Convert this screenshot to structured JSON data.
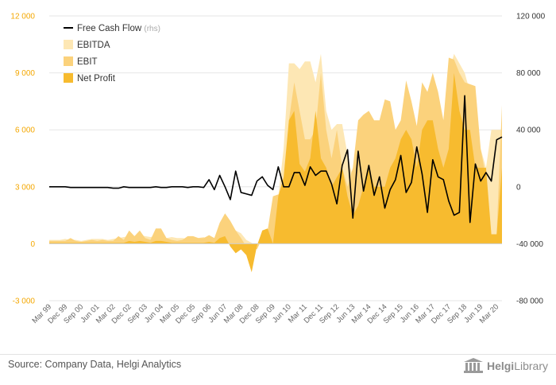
{
  "chart_data": {
    "type": "area",
    "title": "",
    "x": [
      "Mar 99",
      "Jun 99",
      "Sep 99",
      "Dec 99",
      "Mar 00",
      "Jun 00",
      "Sep 00",
      "Dec 00",
      "Mar 01",
      "Jun 01",
      "Sep 01",
      "Dec 01",
      "Mar 02",
      "Jun 02",
      "Sep 02",
      "Dec 02",
      "Mar 03",
      "Jun 03",
      "Sep 03",
      "Dec 03",
      "Mar 04",
      "Jun 04",
      "Sep 04",
      "Dec 04",
      "Mar 05",
      "Jun 05",
      "Sep 05",
      "Dec 05",
      "Mar 06",
      "Jun 06",
      "Sep 06",
      "Dec 06",
      "Mar 07",
      "Jun 07",
      "Sep 07",
      "Dec 07",
      "Mar 08",
      "Jun 08",
      "Sep 08",
      "Dec 08",
      "Mar 09",
      "Jun 09",
      "Sep 09",
      "Dec 09",
      "Mar 10",
      "Jun 10",
      "Sep 10",
      "Dec 10",
      "Mar 11",
      "Jun 11",
      "Sep 11",
      "Dec 11",
      "Mar 12",
      "Jun 12",
      "Sep 12",
      "Dec 12",
      "Mar 13",
      "Jun 13",
      "Sep 13",
      "Dec 13",
      "Mar 14",
      "Jun 14",
      "Sep 14",
      "Dec 14",
      "Mar 15",
      "Jun 15",
      "Sep 15",
      "Dec 15",
      "Mar 16",
      "Jun 16",
      "Sep 16",
      "Dec 16",
      "Mar 17",
      "Jun 17",
      "Sep 17",
      "Dec 17",
      "Mar 18",
      "Jun 18",
      "Sep 18",
      "Dec 18",
      "Mar 19",
      "Jun 19",
      "Sep 19",
      "Dec 19",
      "Mar 20",
      "Jun 20"
    ],
    "x_tick_labels": [
      "Mar 99",
      "Dec 99",
      "Sep 00",
      "Jun 01",
      "Mar 02",
      "Dec 02",
      "Sep 03",
      "Jun 04",
      "Mar 05",
      "Dec 05",
      "Sep 06",
      "Jun 07",
      "Mar 08",
      "Dec 08",
      "Sep 09",
      "Jun 10",
      "Mar 11",
      "Dec 11",
      "Sep 12",
      "Jun 13",
      "Mar 14",
      "Dec 14",
      "Sep 15",
      "Jun 16",
      "Mar 17",
      "Dec 17",
      "Sep 18",
      "Jun 19",
      "Mar 20"
    ],
    "y_left": {
      "lim": [
        -3000,
        12000
      ],
      "ticks": [
        -3000,
        0,
        3000,
        6000,
        9000,
        12000
      ],
      "tick_labels": [
        "-3 000",
        "0",
        "3 000",
        "6 000",
        "9 000",
        "12 000"
      ],
      "color": "#f4a700"
    },
    "y_right": {
      "lim": [
        -80000,
        120000
      ],
      "ticks": [
        -80000,
        -40000,
        0,
        40000,
        80000,
        120000
      ],
      "tick_labels": [
        "-80 000",
        "-40 000",
        "0",
        "40 000",
        "80 000",
        "120 000"
      ]
    },
    "series": [
      {
        "name": "EBITDA",
        "axis": "left",
        "kind": "area",
        "color": "#fde7b4",
        "values": [
          200,
          200,
          200,
          250,
          200,
          200,
          150,
          200,
          250,
          250,
          250,
          200,
          250,
          300,
          350,
          400,
          400,
          450,
          400,
          350,
          400,
          350,
          300,
          350,
          300,
          300,
          250,
          250,
          300,
          350,
          200,
          300,
          1000,
          900,
          700,
          700,
          550,
          200,
          50,
          -200,
          500,
          700,
          1800,
          2500,
          5000,
          9500,
          9500,
          9200,
          9600,
          9600,
          8500,
          10000,
          7000,
          6000,
          6300,
          6300,
          4700,
          3500,
          4500,
          5000,
          5200,
          4500,
          4000,
          4500,
          4600,
          4000,
          4500,
          5000,
          4500,
          5000,
          5500,
          6000,
          6000,
          6000,
          6500,
          9000,
          10000,
          9500,
          9000,
          8000,
          6000,
          5000,
          4000,
          6000,
          6000,
          6000
        ],
        "labels": []
      },
      {
        "name": "EBIT",
        "axis": "left",
        "kind": "area",
        "color": "#fbd27c",
        "values": [
          150,
          150,
          150,
          150,
          300,
          150,
          100,
          150,
          200,
          150,
          200,
          150,
          150,
          400,
          200,
          700,
          400,
          700,
          300,
          200,
          800,
          800,
          300,
          200,
          150,
          200,
          400,
          400,
          300,
          300,
          450,
          300,
          1100,
          1600,
          1200,
          700,
          300,
          -150,
          -100,
          -300,
          300,
          700,
          2500,
          2600,
          2700,
          6500,
          8500,
          7000,
          5500,
          5500,
          6000,
          9000,
          6000,
          4500,
          6000,
          4000,
          3000,
          4000,
          6500,
          6800,
          7000,
          6500,
          6500,
          7600,
          7500,
          6000,
          6500,
          8600,
          7500,
          6200,
          8500,
          8000,
          9000,
          8000,
          6500,
          9800,
          9700,
          9000,
          8500,
          8400,
          8300,
          5000,
          3500,
          500,
          500,
          7300
        ],
        "labels": []
      },
      {
        "name": "Net Profit",
        "axis": "left",
        "kind": "area",
        "color": "#f7bb2f",
        "values": [
          50,
          50,
          50,
          50,
          50,
          50,
          50,
          50,
          50,
          50,
          50,
          50,
          50,
          50,
          50,
          150,
          100,
          150,
          100,
          50,
          150,
          150,
          100,
          50,
          50,
          50,
          50,
          50,
          50,
          50,
          100,
          50,
          300,
          400,
          -150,
          -500,
          -300,
          -600,
          -1500,
          -100,
          700,
          800,
          0,
          2500,
          3500,
          6500,
          7000,
          4200,
          3800,
          4500,
          7000,
          4500,
          4000,
          3000,
          3500,
          4000,
          2500,
          1500,
          2000,
          3000,
          4000,
          3000,
          3000,
          3000,
          4000,
          4500,
          5500,
          6000,
          5500,
          4000,
          6000,
          6500,
          6500,
          5000,
          4000,
          5000,
          9000,
          7000,
          6000,
          6000,
          4000,
          4000,
          4000,
          500,
          500,
          4000
        ],
        "labels": []
      },
      {
        "name": "Free Cash Flow",
        "unit_label": "(rhs)",
        "axis": "right",
        "kind": "line",
        "color": "#000000",
        "values": [
          0,
          0,
          0,
          0,
          -500,
          -500,
          -500,
          -500,
          -500,
          -500,
          -500,
          -500,
          -1000,
          -1000,
          0,
          -500,
          -500,
          -500,
          -500,
          -500,
          0,
          -500,
          -500,
          0,
          0,
          0,
          -500,
          0,
          0,
          -500,
          5000,
          -2000,
          8000,
          0,
          -9000,
          11000,
          -4000,
          -5000,
          -6000,
          4000,
          7000,
          1000,
          -2000,
          14000,
          0,
          0,
          10000,
          10000,
          1000,
          14000,
          8000,
          11000,
          11000,
          2000,
          -12000,
          15000,
          26000,
          -22000,
          25000,
          -3000,
          15000,
          -6000,
          7000,
          -15000,
          -2000,
          5000,
          22000,
          -4000,
          3000,
          28000,
          9000,
          -18000,
          19000,
          7000,
          5000,
          -10000,
          -20000,
          -18000,
          64000,
          -25000,
          16000,
          4000,
          10000,
          4000,
          33000,
          35000
        ],
        "labels": []
      }
    ],
    "legend": {
      "placement": "top-left",
      "entries": [
        {
          "label": "Free Cash Flow",
          "suffix": "(rhs)",
          "swatch": "line",
          "color": "#000000"
        },
        {
          "label": "EBITDA",
          "swatch": "box",
          "color": "#fde7b4"
        },
        {
          "label": "EBIT",
          "swatch": "box",
          "color": "#fbd27c"
        },
        {
          "label": "Net Profit",
          "swatch": "box",
          "color": "#f7bb2f"
        }
      ]
    },
    "grid": "horizontal"
  },
  "footer": {
    "source": "Source: Company Data, Helgi Analytics",
    "logo_text_a": "Helgi",
    "logo_text_b": "Library"
  }
}
